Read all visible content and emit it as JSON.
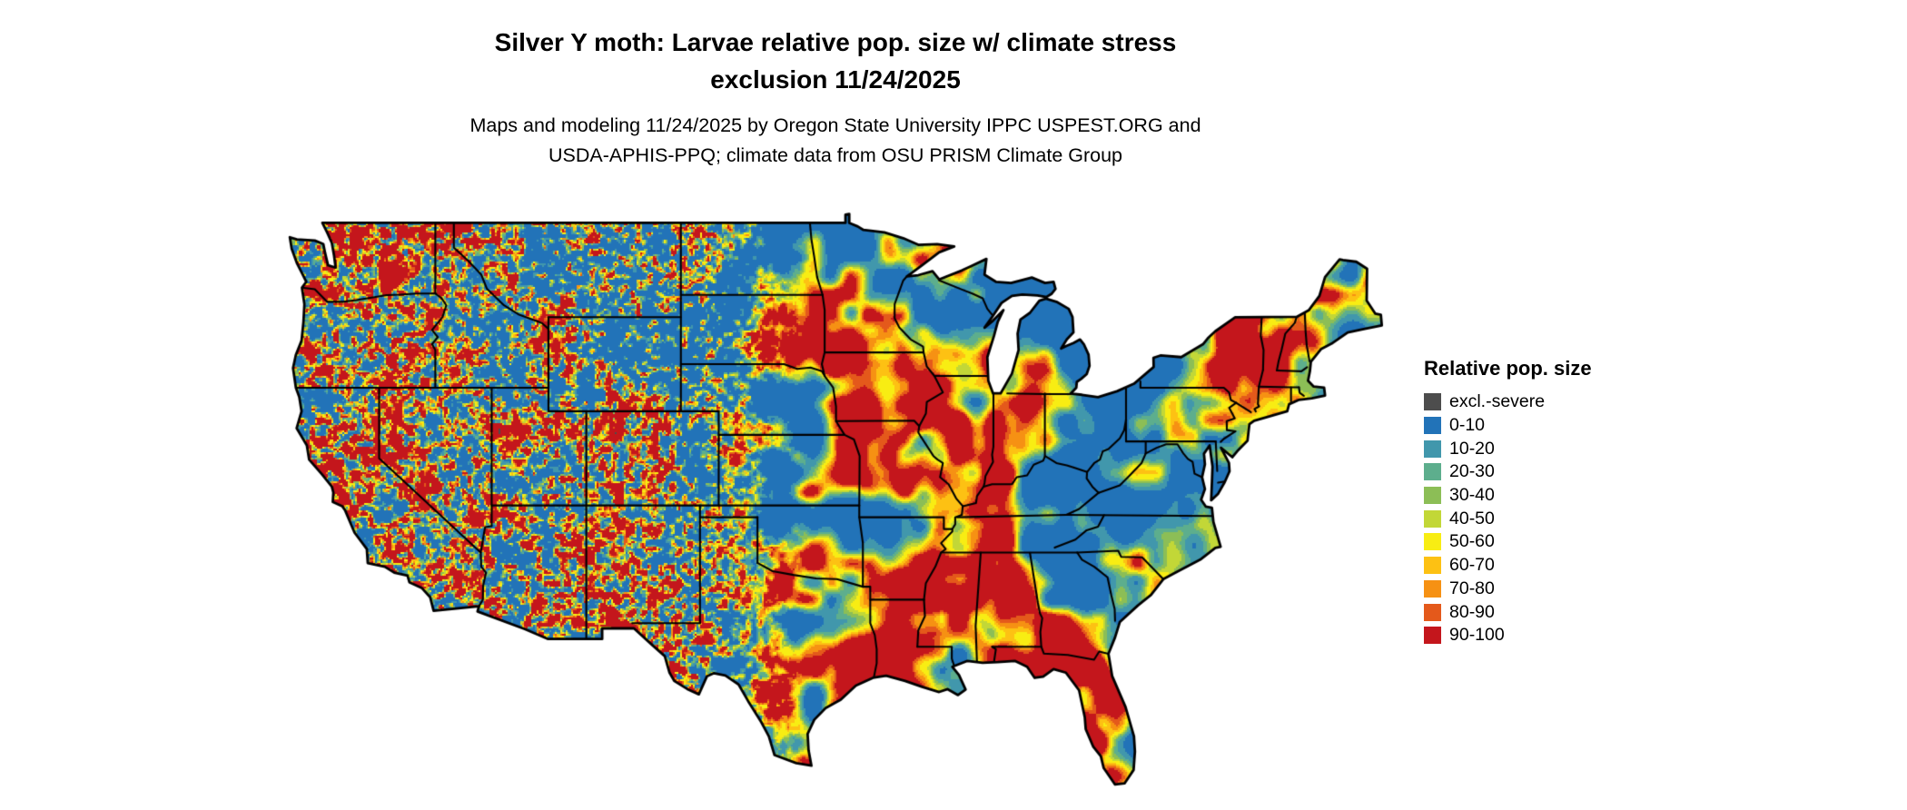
{
  "header": {
    "title_line1": "Silver Y moth: Larvae relative pop. size w/ climate stress",
    "title_line2": "exclusion 11/24/2025",
    "subtitle_line1": "Maps and modeling 11/24/2025 by Oregon State University IPPC USPEST.ORG and",
    "subtitle_line2": "USDA-APHIS-PPQ; climate data from OSU PRISM Climate Group"
  },
  "legend": {
    "title": "Relative pop. size",
    "entries": [
      {
        "label": "excl.-severe",
        "color": "#4d4d4d"
      },
      {
        "label": "0-10",
        "color": "#2273b8"
      },
      {
        "label": "10-20",
        "color": "#4197ac"
      },
      {
        "label": "20-30",
        "color": "#5dae8d"
      },
      {
        "label": "30-40",
        "color": "#8cbe56"
      },
      {
        "label": "40-50",
        "color": "#c2d737"
      },
      {
        "label": "50-60",
        "color": "#f8ed13"
      },
      {
        "label": "60-70",
        "color": "#fdc113"
      },
      {
        "label": "70-80",
        "color": "#f69113"
      },
      {
        "label": "80-90",
        "color": "#e4591b"
      },
      {
        "label": "90-100",
        "color": "#c4161c"
      }
    ]
  }
}
